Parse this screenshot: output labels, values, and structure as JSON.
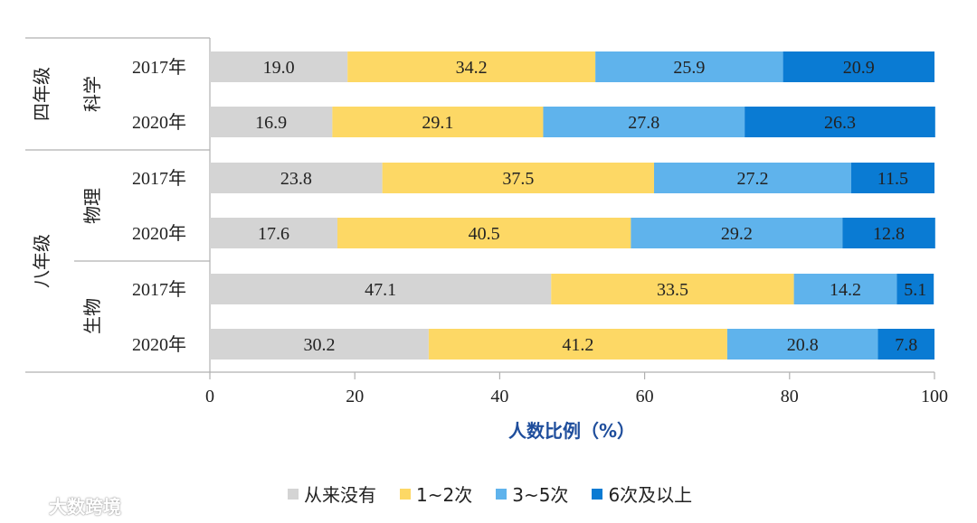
{
  "chart_data": {
    "type": "bar",
    "orientation": "horizontal",
    "stacked": true,
    "rows": [
      {
        "grade": "四年级",
        "subject": "科学",
        "year": "2017年",
        "values": [
          19.0,
          34.2,
          25.9,
          20.9
        ]
      },
      {
        "grade": "四年级",
        "subject": "科学",
        "year": "2020年",
        "values": [
          16.9,
          29.1,
          27.8,
          26.3
        ]
      },
      {
        "grade": "八年级",
        "subject": "物理",
        "year": "2017年",
        "values": [
          23.8,
          37.5,
          27.2,
          11.5
        ]
      },
      {
        "grade": "八年级",
        "subject": "物理",
        "year": "2020年",
        "values": [
          17.6,
          40.5,
          29.2,
          12.8
        ]
      },
      {
        "grade": "八年级",
        "subject": "生物",
        "year": "2017年",
        "values": [
          47.1,
          33.5,
          14.2,
          5.1
        ]
      },
      {
        "grade": "八年级",
        "subject": "生物",
        "year": "2020年",
        "values": [
          30.2,
          41.2,
          20.8,
          7.8
        ]
      }
    ],
    "value_labels": [
      [
        "19.0",
        "34.2",
        "25.9",
        "20.9"
      ],
      [
        "16.9",
        "29.1",
        "27.8",
        "26.3"
      ],
      [
        "23.8",
        "37.5",
        "27.2",
        "11.5"
      ],
      [
        "17.6",
        "40.5",
        "29.2",
        "12.8"
      ],
      [
        "47.1",
        "33.5",
        "14.2",
        "5.1"
      ],
      [
        "30.2",
        "41.2",
        "20.8",
        "7.8"
      ]
    ],
    "grades": [
      "四年级",
      "八年级"
    ],
    "subjects": [
      "科学",
      "物理",
      "生物"
    ],
    "series": [
      {
        "name": "从来没有",
        "color": "#d4d4d4"
      },
      {
        "name": "1~2次",
        "color": "#fdd865"
      },
      {
        "name": "3~5次",
        "color": "#5fb3ec"
      },
      {
        "name": "6次及以上",
        "color": "#0a7bd3"
      }
    ],
    "xlabel": "人数比例（%）",
    "xlim": [
      0,
      100
    ],
    "xticks": [
      "0",
      "20",
      "40",
      "60",
      "80",
      "100"
    ],
    "legend_position": "bottom"
  },
  "legend": {
    "items": [
      {
        "label": "从来没有",
        "color": "#d4d4d4"
      },
      {
        "label": "1~2次",
        "color": "#fdd865"
      },
      {
        "label": "3~5次",
        "color": "#5fb3ec"
      },
      {
        "label": "6次及以上",
        "color": "#0a7bd3"
      }
    ]
  },
  "watermark": {
    "text": "大数跨境"
  }
}
